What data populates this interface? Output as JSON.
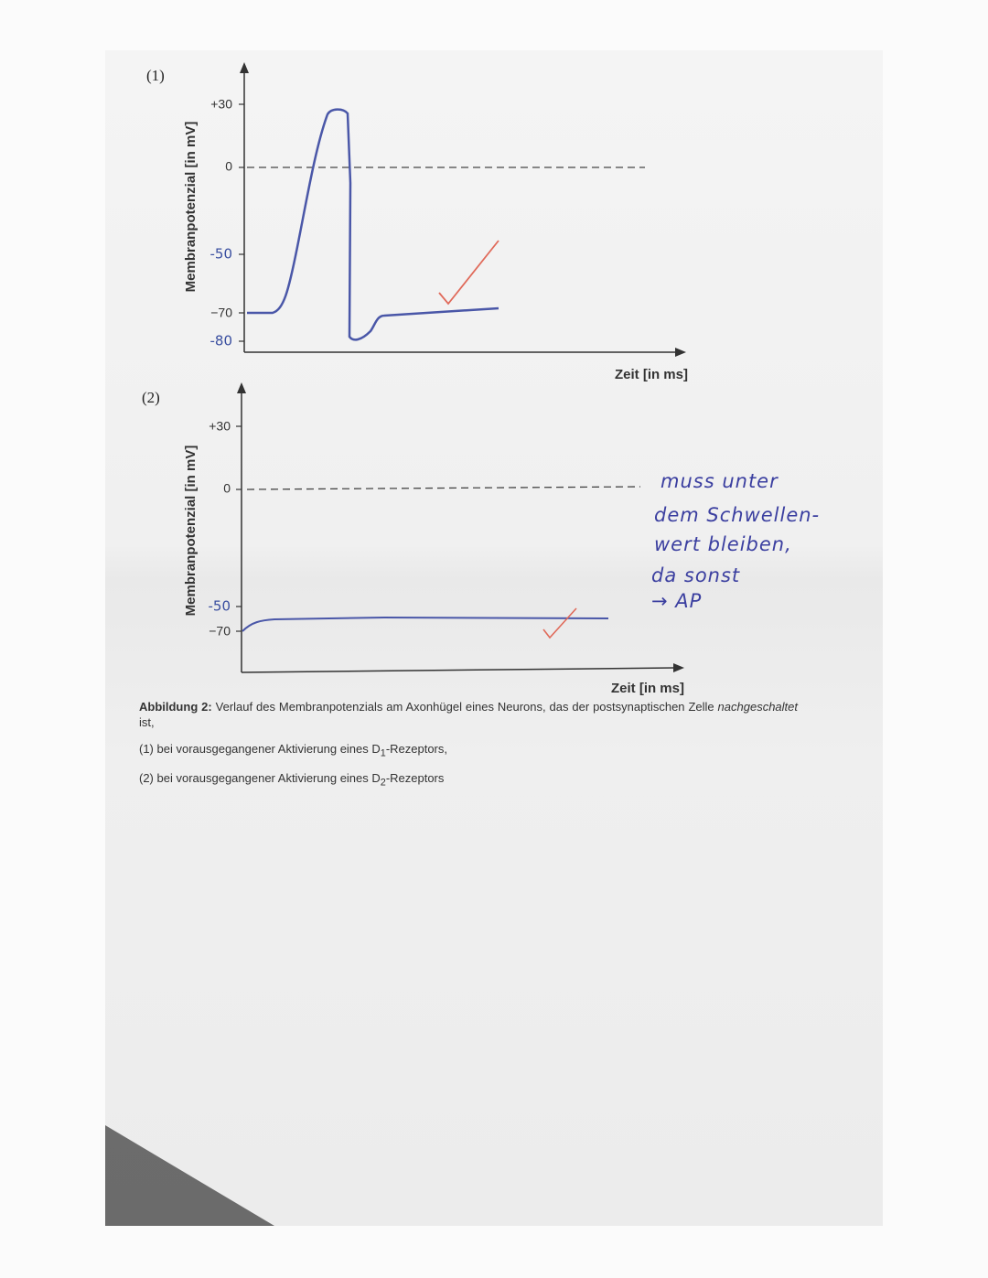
{
  "figures": [
    {
      "panel": "(1)",
      "y_axis_label": "Membranpotenzial [in mV]",
      "x_axis_label": "Zeit [in ms]",
      "tick_labels": [
        "+30",
        "0",
        "-50",
        "−70",
        "-80"
      ]
    },
    {
      "panel": "(2)",
      "y_axis_label": "Membranpotenzial [in mV]",
      "x_axis_label": "Zeit [in ms]",
      "tick_labels": [
        "+30",
        "0",
        "-50",
        "−70"
      ]
    }
  ],
  "annotation": [
    "muss unter",
    "dem Schwellen-",
    "wert bleiben,",
    "da sonst",
    "→ AP"
  ],
  "caption": {
    "label": "Abbildung 2:",
    "text": "Verlauf des Membranpotenzials am Axonhügel eines Neurons, das der postsynaptischen Zelle",
    "italic": "nachgeschaltet",
    "end": "ist,",
    "items": [
      {
        "before": "(1) bei vorausgegangener Aktivierung eines D",
        "sub": "1",
        "after": "-Rezeptors,"
      },
      {
        "before": "(2) bei vorausgegangener Aktivierung eines D",
        "sub": "2",
        "after": "-Rezeptors"
      }
    ]
  }
}
